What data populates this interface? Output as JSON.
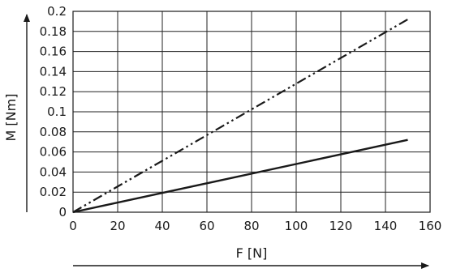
{
  "chart_data": {
    "type": "line",
    "xlabel": "F [N]",
    "ylabel": "M [Nm]",
    "xlim": [
      0,
      160
    ],
    "ylim": [
      0,
      0.2
    ],
    "x_ticks": [
      0,
      20,
      40,
      60,
      80,
      100,
      120,
      140,
      160
    ],
    "x_tick_labels": [
      "0",
      "20",
      "40",
      "60",
      "80",
      "100",
      "120",
      "140",
      "160"
    ],
    "y_ticks": [
      0,
      0.02,
      0.04,
      0.06,
      0.08,
      0.1,
      0.12,
      0.14,
      0.16,
      0.18,
      0.2
    ],
    "y_tick_labels": [
      "0",
      "0.02",
      "0.04",
      "0.06",
      "0.08",
      "0.1",
      "0.12",
      "0.14",
      "0.16",
      "0.18",
      "0.2"
    ],
    "grid": true,
    "series": [
      {
        "line_style": "solid",
        "x": [
          0,
          150
        ],
        "y": [
          0,
          0.072
        ]
      },
      {
        "line_style": "dash-dot-dot",
        "x": [
          0,
          150
        ],
        "y": [
          0,
          0.192
        ]
      }
    ],
    "colors": {
      "line": "#1a1a1a",
      "grid": "#222222",
      "background": "#ffffff"
    }
  }
}
